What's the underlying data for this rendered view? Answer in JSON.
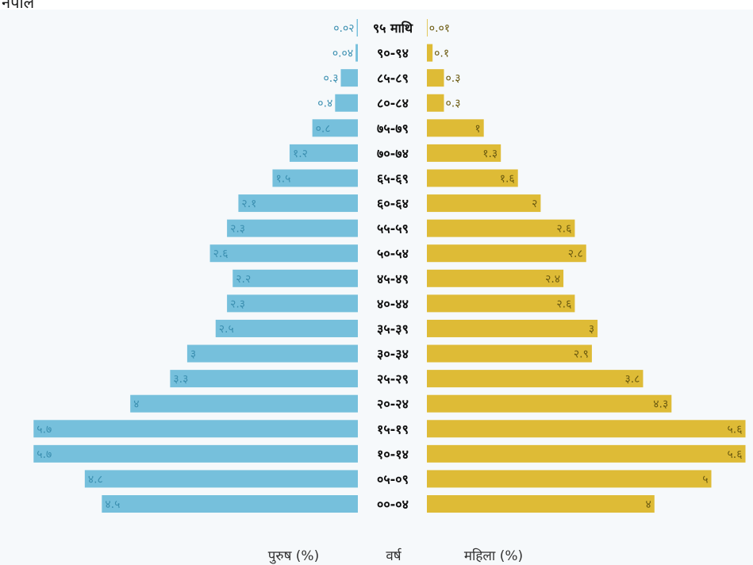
{
  "top_clipped_text": "नेपाल",
  "colors": {
    "male": "#76c0dc",
    "female": "#debb36",
    "male_text": "#3b8fb0",
    "female_text": "#6b5a10"
  },
  "chart_data": {
    "type": "bar",
    "orientation": "horizontal-pyramid",
    "categories": [
      "९५ माथि",
      "९०-९४",
      "८५-८९",
      "८०-८४",
      "७५-७९",
      "७०-७४",
      "६५-६९",
      "६०-६४",
      "५५-५९",
      "५०-५४",
      "४५-४९",
      "४०-४४",
      "३५-३९",
      "३०-३४",
      "२५-२९",
      "२०-२४",
      "१५-१९",
      "१०-१४",
      "०५-०९",
      "००-०४"
    ],
    "series": [
      {
        "name": "पुरुष (%)",
        "values": [
          0.02,
          0.04,
          0.3,
          0.4,
          0.8,
          1.2,
          1.5,
          2.1,
          2.3,
          2.6,
          2.2,
          2.3,
          2.5,
          3,
          3.3,
          4,
          5.7,
          5.7,
          4.8,
          4.5
        ],
        "labels": [
          "०.०२",
          "०.०४",
          "०.३",
          "०.४",
          "०.८",
          "१.२",
          "१.५",
          "२.१",
          "२.३",
          "२.६",
          "२.२",
          "२.३",
          "२.५",
          "३",
          "३.३",
          "४",
          "५.७",
          "५.७",
          "४.८",
          "४.५"
        ]
      },
      {
        "name": "महिला (%)",
        "values": [
          0.01,
          0.1,
          0.3,
          0.3,
          1,
          1.3,
          1.6,
          2,
          2.6,
          2.8,
          2.4,
          2.6,
          3,
          2.9,
          3.8,
          4.3,
          5.6,
          5.6,
          5,
          4
        ],
        "labels": [
          "०.०१",
          "०.१",
          "०.३",
          "०.३",
          "१",
          "१.३",
          "१.६",
          "२",
          "२.६",
          "२.८",
          "२.४",
          "२.६",
          "३",
          "२.९",
          "३.८",
          "४.३",
          "५.६",
          "५.६",
          "५",
          "४"
        ]
      }
    ],
    "xlabel_left": "पुरुष (%)",
    "xlabel_center": "वर्ष",
    "xlabel_right": "महिला (%)",
    "grid": false
  }
}
